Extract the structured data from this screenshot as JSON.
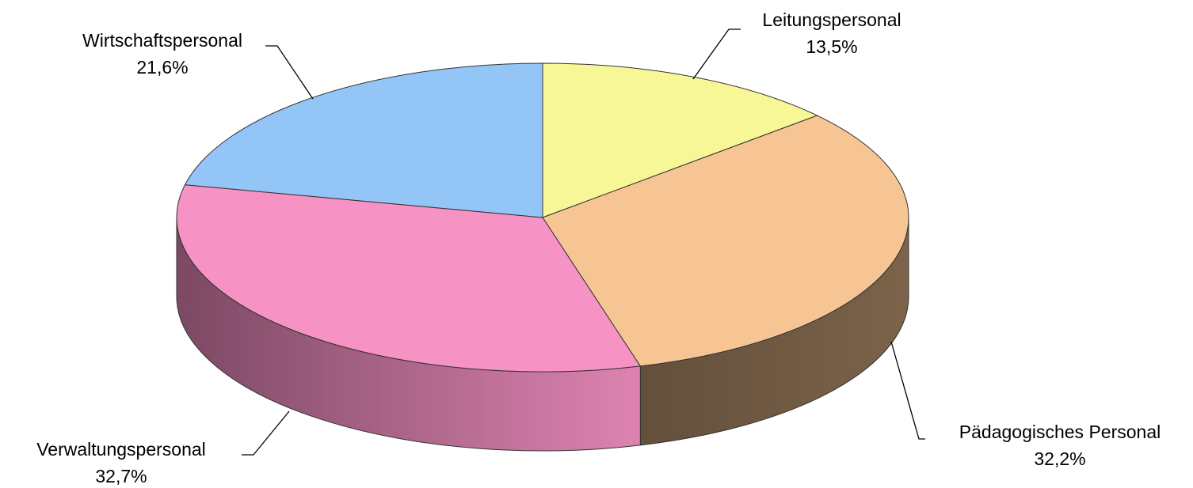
{
  "chart_data": {
    "type": "pie",
    "categories": [
      "Leitungspersonal",
      "Pädagogisches Personal",
      "Verwaltungspersonal",
      "Wirtschaftspersonal"
    ],
    "values": [
      13.5,
      32.2,
      32.7,
      21.6
    ],
    "value_labels": [
      "13,5%",
      "32,2%",
      "32,7%",
      "21,6%"
    ],
    "colors": [
      "#f7f797",
      "#f7c594",
      "#f792c5",
      "#94c5f7"
    ],
    "three_d": true
  }
}
